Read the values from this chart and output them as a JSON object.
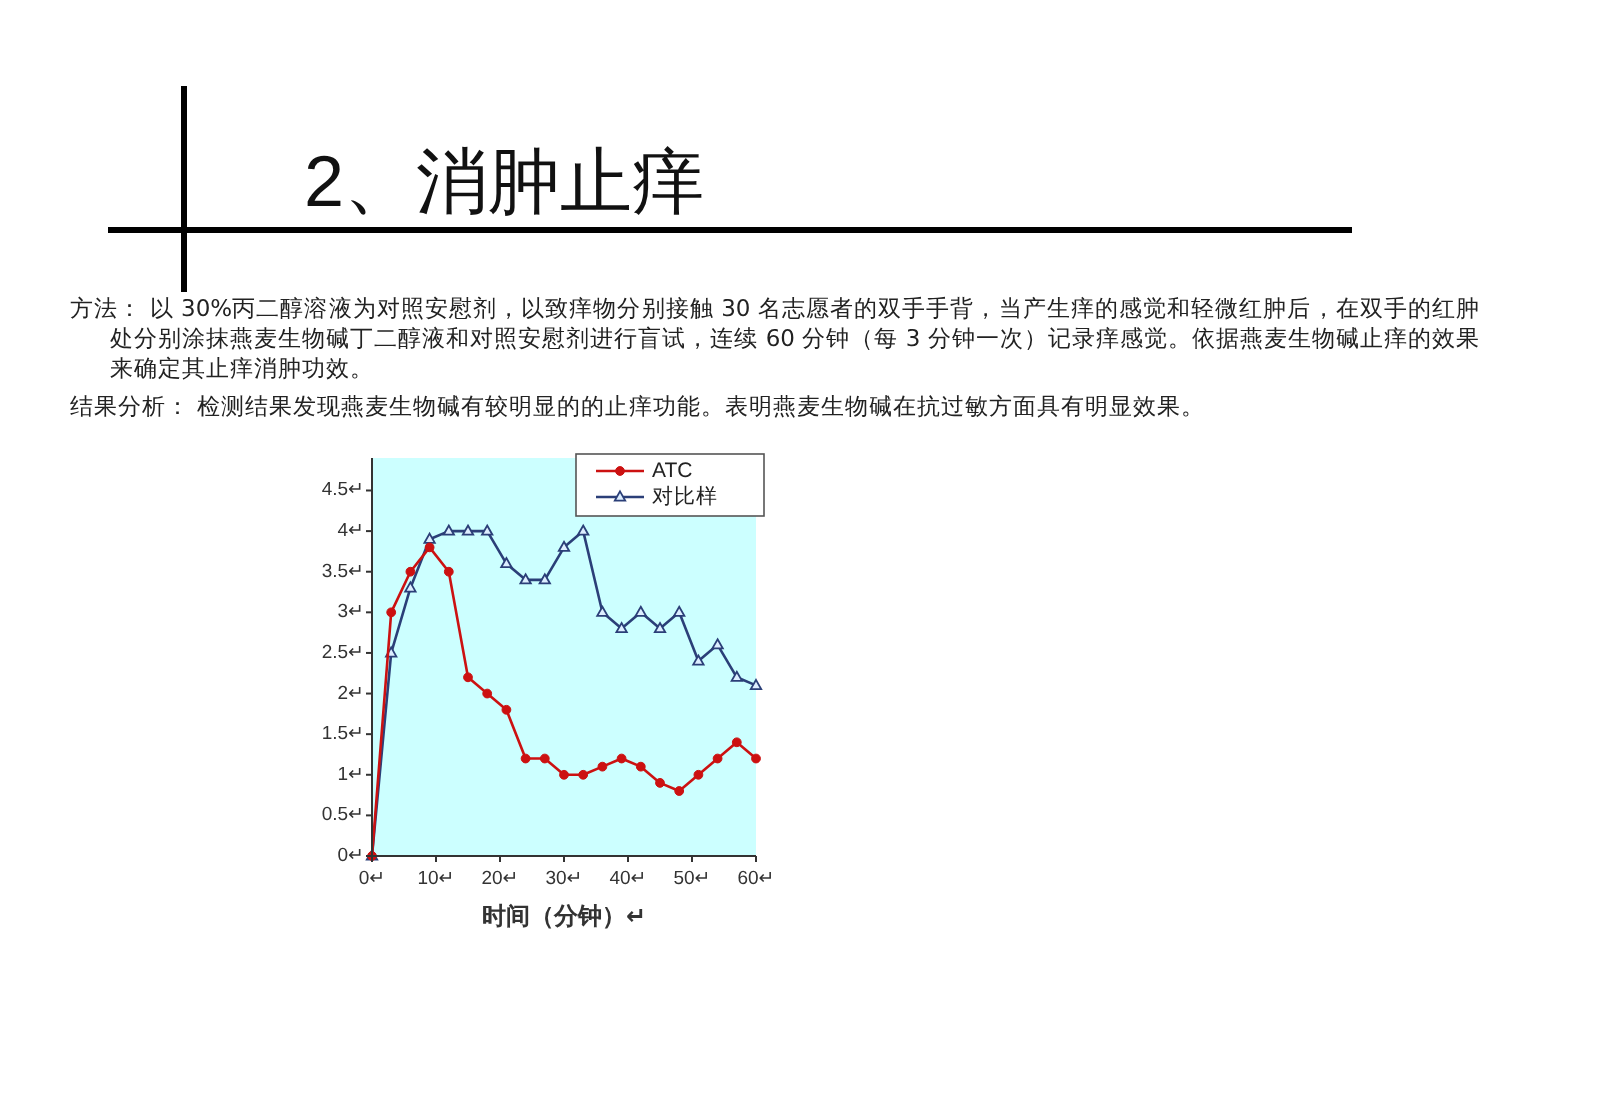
{
  "chart_data": {
    "type": "line",
    "title": "2、消肿止痒",
    "annotations": [
      "方法： 以 30%丙二醇溶液为对照安慰剂，以致痒物分别接触 30 名志愿者的双手手背，当产生痒的感觉和轻微红肿后，在双手的红肿处分别涂抹燕麦生物碱丁二醇液和对照安慰剂进行盲试，连续 60 分钟（每 3 分钟一次）记录痒感觉。依据燕麦生物碱止痒的效果来确定其止痒消肿功效。",
      "结果分析：  检测结果发现燕麦生物碱有较明显的的止痒功能。表明燕麦生物碱在抗过敏方面具有明显效果。"
    ],
    "xlabel": "时间（分钟）↵",
    "x": [
      0,
      3,
      6,
      9,
      12,
      15,
      18,
      21,
      24,
      27,
      30,
      33,
      36,
      39,
      42,
      45,
      48,
      51,
      54,
      57,
      60
    ],
    "xlim": [
      0,
      60
    ],
    "xticks": [
      {
        "value": 0,
        "label": "0↵"
      },
      {
        "value": 10,
        "label": "10↵"
      },
      {
        "value": 20,
        "label": "20↵"
      },
      {
        "value": 30,
        "label": "30↵"
      },
      {
        "value": 40,
        "label": "40↵"
      },
      {
        "value": 50,
        "label": "50↵"
      },
      {
        "value": 60,
        "label": "60↵"
      }
    ],
    "ylim": [
      0,
      4.9
    ],
    "yticks": [
      {
        "value": 0,
        "label": "0↵"
      },
      {
        "value": 0.5,
        "label": "0.5↵"
      },
      {
        "value": 1,
        "label": "1↵"
      },
      {
        "value": 1.5,
        "label": "1.5↵"
      },
      {
        "value": 2,
        "label": "2↵"
      },
      {
        "value": 2.5,
        "label": "2.5↵"
      },
      {
        "value": 3,
        "label": "3↵"
      },
      {
        "value": 3.5,
        "label": "3.5↵"
      },
      {
        "value": 4,
        "label": "4↵"
      },
      {
        "value": 4.5,
        "label": "4.5↵"
      }
    ],
    "legend": "top right",
    "series": [
      {
        "name": "ATC",
        "color": "#cc1111",
        "marker": "circle",
        "values": [
          0,
          3.0,
          3.5,
          3.8,
          3.5,
          2.2,
          2.0,
          1.8,
          1.2,
          1.2,
          1.0,
          1.0,
          1.1,
          1.2,
          1.1,
          0.9,
          0.8,
          1.0,
          1.2,
          1.4,
          1.2
        ]
      },
      {
        "name": "对比样",
        "color": "#2b3f78",
        "marker": "triangle",
        "values": [
          0,
          2.5,
          3.3,
          3.9,
          4.0,
          4.0,
          4.0,
          3.6,
          3.4,
          3.4,
          3.8,
          4.0,
          3.0,
          2.8,
          3.0,
          2.8,
          3.0,
          2.4,
          2.6,
          2.2,
          2.1
        ]
      }
    ]
  }
}
